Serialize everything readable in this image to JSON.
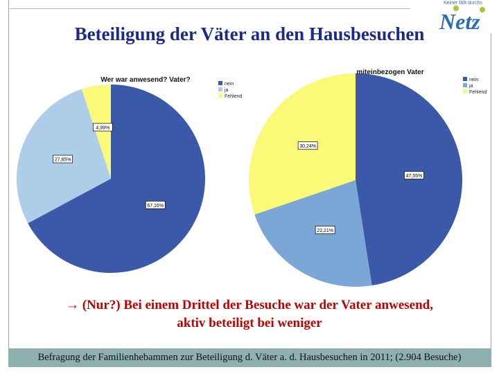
{
  "title": "Beteiligung der Väter an den Hausbesuchen",
  "logo": {
    "tagline": "Keiner fällt durchs",
    "name": "Netz"
  },
  "chart_data": [
    {
      "type": "pie",
      "title": "Wer war anwesend? Vater?",
      "categories": [
        "nein",
        "ja",
        "Fehlend"
      ],
      "values": [
        67.16,
        27.85,
        4.99
      ],
      "labels": [
        "67,16%",
        "27,85%",
        "4,99%"
      ],
      "colors": [
        "#3c58a8",
        "#aecde9",
        "#fafa78"
      ],
      "legend": "top-right"
    },
    {
      "type": "pie",
      "title": "miteinbezogen Vater",
      "categories": [
        "nein",
        "ja",
        "Fehlend"
      ],
      "values": [
        47.55,
        22.21,
        30.24
      ],
      "labels": [
        "47,55%",
        "22,21%",
        "30,24%"
      ],
      "colors": [
        "#3c58a8",
        "#7ba7d6",
        "#fafa78"
      ],
      "legend": "top-right"
    }
  ],
  "message": {
    "arrow": "→",
    "line1": "(Nur?) Bei einem Drittel der Besuche war der Vater anwesend,",
    "line2": "aktiv beteiligt bei weniger"
  },
  "footer": "Befragung der Familienhebammen zur Beteiligung d. Väter a. d. Hausbesuchen in 2011; (2.904 Besuche)"
}
